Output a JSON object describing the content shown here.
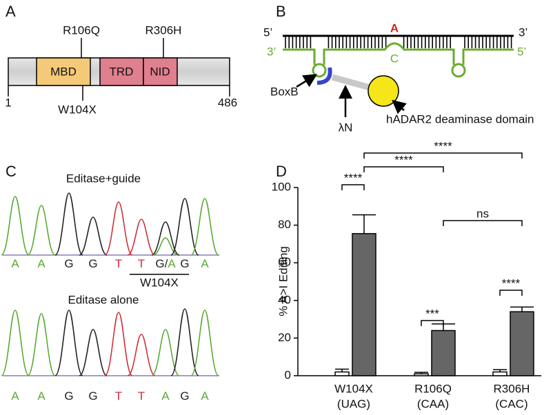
{
  "panel_labels": [
    "A",
    "B",
    "C",
    "D"
  ],
  "panel_a": {
    "mutations_top": [
      "R106Q",
      "R306H"
    ],
    "domains": [
      "MBD",
      "TRD",
      "NID"
    ],
    "mutation_bottom": "W104X",
    "start": "1",
    "end": "486"
  },
  "panel_b": {
    "top_strand": [
      "5’",
      "3’"
    ],
    "target_base": "A",
    "guide_strand": [
      "3’",
      "5’"
    ],
    "guide_base": "C",
    "labels": [
      "BoxB",
      "λN",
      "hADAR2 deaminase domain"
    ]
  },
  "panel_c": {
    "traces": [
      {
        "title": "Editase+guide",
        "bases": [
          "A",
          "A",
          "G",
          "G",
          "T",
          "T",
          "G/A",
          "G",
          "A"
        ]
      },
      {
        "title": "Editase alone",
        "bases": [
          "A",
          "A",
          "G",
          "G",
          "T",
          "T",
          "A",
          "G",
          "A"
        ]
      }
    ],
    "site_label": "W104X"
  },
  "chart_data": {
    "type": "bar",
    "y_label": "% A>I Editing",
    "categories": [
      "W104X",
      "R106Q",
      "R306H"
    ],
    "category_sublabels": [
      "(UAG)",
      "(CAA)",
      "(CAC)"
    ],
    "series": [
      {
        "color": "#ffffff",
        "values": [
          2,
          1,
          2
        ],
        "errors": [
          1.5,
          0.8,
          1.2
        ]
      },
      {
        "color": "#666666",
        "values": [
          75.5,
          24,
          34
        ],
        "errors": [
          10,
          3.5,
          2.5
        ]
      }
    ],
    "ylim": [
      0,
      100
    ],
    "yticks": [
      0,
      20,
      40,
      60,
      80,
      100
    ],
    "significance": [
      "****",
      "***",
      "****",
      "****",
      "****",
      "ns"
    ]
  }
}
